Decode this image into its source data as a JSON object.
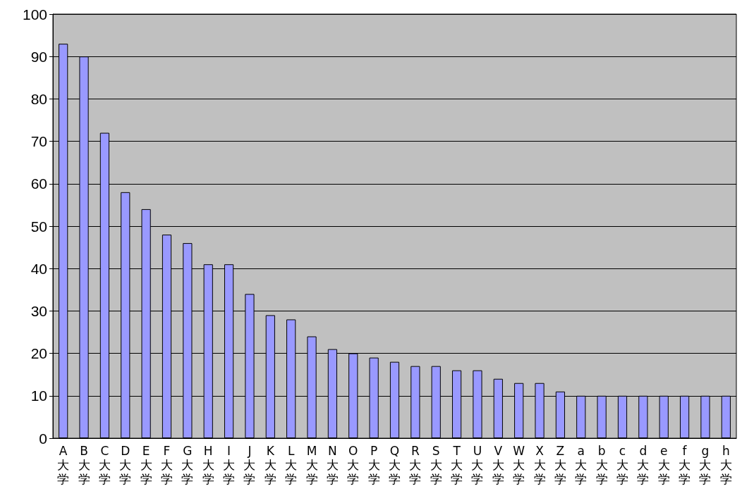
{
  "chart_data": {
    "type": "bar",
    "categories": [
      "A大学",
      "B大学",
      "C大学",
      "D大学",
      "E大学",
      "F大学",
      "G大学",
      "H大学",
      "I大学",
      "J大学",
      "K大学",
      "L大学",
      "M大学",
      "N大学",
      "O大学",
      "P大学",
      "Q大学",
      "R大学",
      "S大学",
      "T大学",
      "U大学",
      "V大学",
      "W大学",
      "X大学",
      "Z大学",
      "a大学",
      "b大学",
      "c大学",
      "d大学",
      "e大学",
      "f大学",
      "g大学",
      "h大学"
    ],
    "values": [
      93,
      90,
      72,
      58,
      54,
      48,
      46,
      41,
      41,
      34,
      29,
      28,
      24,
      21,
      20,
      19,
      18,
      17,
      17,
      16,
      16,
      14,
      13,
      13,
      11,
      10,
      10,
      10,
      10,
      10,
      10,
      10,
      10
    ],
    "color": "#9999ff",
    "ylim": [
      0,
      100
    ],
    "yticks": [
      0,
      10,
      20,
      30,
      40,
      50,
      60,
      70,
      80,
      90,
      100
    ],
    "grid": "y"
  }
}
